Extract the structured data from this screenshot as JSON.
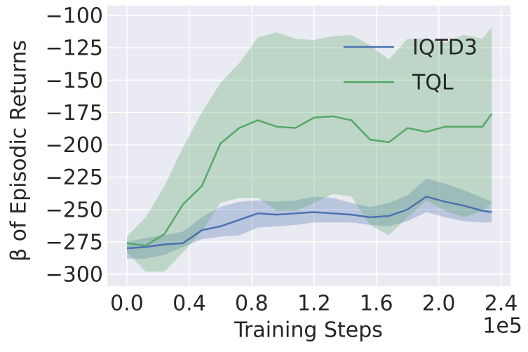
{
  "chart_data": {
    "type": "line",
    "xlabel": "Training Steps",
    "ylabel": "β of Episodic Returns",
    "x_offset_label": "1e5",
    "x": [
      0,
      0.12,
      0.24,
      0.36,
      0.48,
      0.6,
      0.72,
      0.84,
      0.96,
      1.08,
      1.2,
      1.32,
      1.44,
      1.56,
      1.68,
      1.8,
      1.92,
      2.04,
      2.16,
      2.28,
      2.34
    ],
    "series": [
      {
        "name": "IQTD3",
        "color": "#4c72b0",
        "values": [
          -280,
          -279,
          -277,
          -276,
          -266,
          -263,
          -258,
          -253,
          -254,
          -253,
          -252,
          -253,
          -254,
          -256,
          -255,
          -250,
          -240,
          -244,
          -247,
          -251,
          -252
        ],
        "upper": [
          -275,
          -272,
          -270,
          -267,
          -256,
          -248,
          -244,
          -243,
          -244,
          -243,
          -240,
          -241,
          -245,
          -248,
          -245,
          -239,
          -226,
          -230,
          -235,
          -241,
          -244
        ],
        "lower": [
          -288,
          -288,
          -285,
          -279,
          -273,
          -271,
          -270,
          -264,
          -263,
          -262,
          -260,
          -260,
          -260,
          -262,
          -263,
          -259,
          -252,
          -256,
          -259,
          -260,
          -260
        ]
      },
      {
        "name": "TQL",
        "color": "#55a868",
        "values": [
          -276,
          -278,
          -269,
          -246,
          -232,
          -199,
          -187,
          -181,
          -186,
          -187,
          -179,
          -178,
          -181,
          -196,
          -198,
          -187,
          -190,
          -186,
          -186,
          -186,
          -176
        ],
        "upper": [
          -271,
          -256,
          -232,
          -202,
          -175,
          -152,
          -137,
          -117,
          -113,
          -118,
          -119,
          -116,
          -115,
          -123,
          -134,
          -118,
          -118,
          -121,
          -115,
          -118,
          -109
        ],
        "lower": [
          -283,
          -298,
          -298,
          -283,
          -267,
          -245,
          -241,
          -241,
          -251,
          -251,
          -245,
          -238,
          -240,
          -262,
          -270,
          -256,
          -243,
          -251,
          -256,
          -251,
          -245
        ]
      }
    ],
    "xlim": [
      -0.126,
      2.46
    ],
    "ylim": [
      -309.2,
      -92.4
    ],
    "xticks": [
      {
        "value": 0,
        "label": "0.0"
      },
      {
        "value": 0.4,
        "label": "0.4"
      },
      {
        "value": 0.8,
        "label": "0.8"
      },
      {
        "value": 1.2,
        "label": "1.2"
      },
      {
        "value": 1.6,
        "label": "1.6"
      },
      {
        "value": 2.0,
        "label": "2.0"
      },
      {
        "value": 2.4,
        "label": "2.4"
      }
    ],
    "yticks": [
      {
        "value": -100,
        "label": "−100"
      },
      {
        "value": -125,
        "label": "−125"
      },
      {
        "value": -150,
        "label": "−150"
      },
      {
        "value": -175,
        "label": "−175"
      },
      {
        "value": -200,
        "label": "−200"
      },
      {
        "value": -225,
        "label": "−225"
      },
      {
        "value": -250,
        "label": "−250"
      },
      {
        "value": -275,
        "label": "−275"
      },
      {
        "value": -300,
        "label": "−300"
      }
    ],
    "grid": true,
    "legend": "upper right",
    "background": "#eaeaf2"
  }
}
